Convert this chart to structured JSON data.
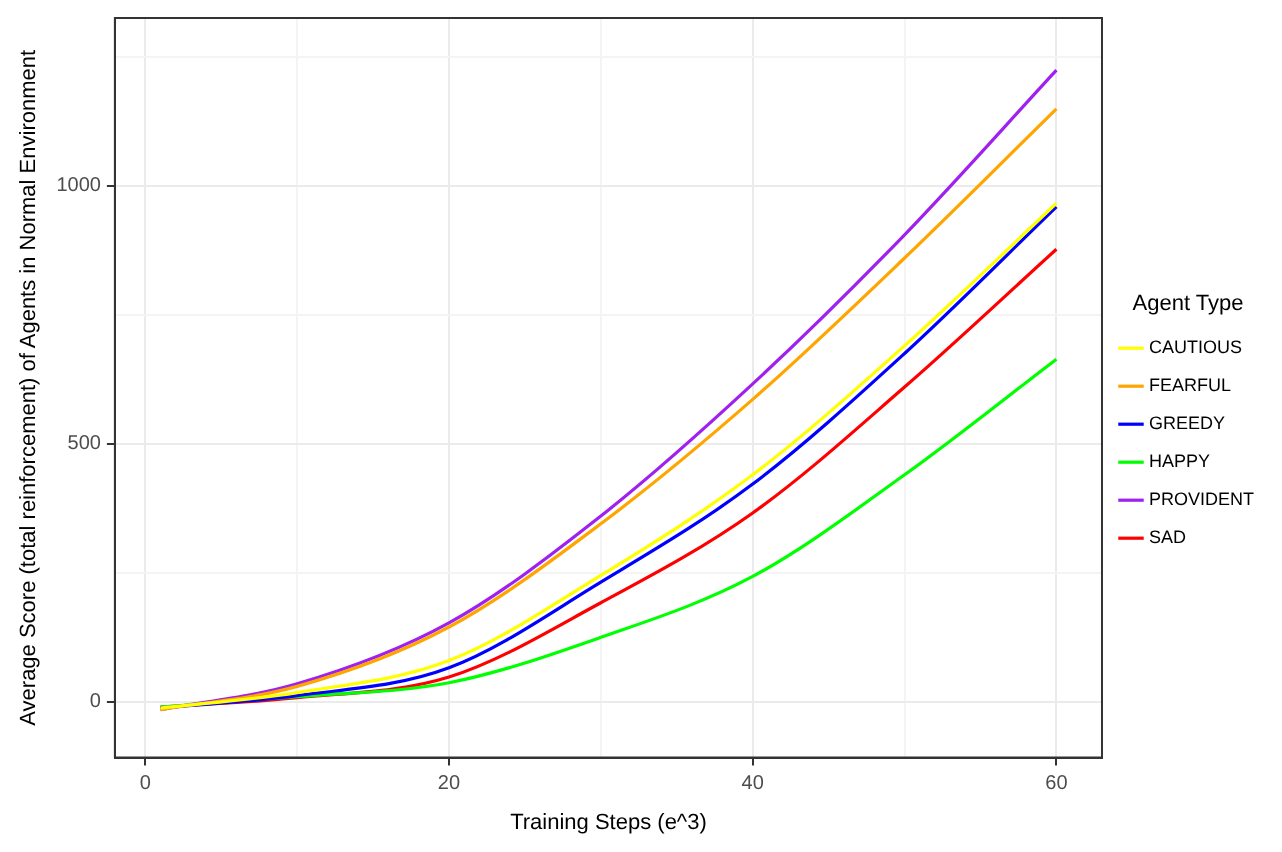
{
  "chart_data": {
    "type": "line",
    "xlabel": "Training Steps (e^3)",
    "ylabel": "Average Score (total reinforcement) of Agents in Normal Environment",
    "legend_title": "Agent Type",
    "legend": "right",
    "grid": true,
    "marker": "none",
    "line_style": "solid",
    "x": [
      1,
      10,
      20,
      30,
      40,
      50,
      60
    ],
    "xlim": [
      -2,
      63
    ],
    "xticks": [
      0,
      {
        "value": 10,
        "label": null
      },
      20,
      {
        "value": 30,
        "label": null
      },
      40,
      {
        "value": 50,
        "label": null
      },
      60
    ],
    "ylim": [
      -108,
      1325
    ],
    "yticks": [
      0,
      {
        "value": 250,
        "label": null
      },
      500,
      {
        "value": 750,
        "label": null
      },
      1000,
      {
        "value": 1250,
        "label": null
      }
    ],
    "series": [
      {
        "name": "CAUTIOUS",
        "color": "#ffff00",
        "values": [
          -12,
          18,
          80,
          245,
          440,
          690,
          966
        ]
      },
      {
        "name": "FEARFUL",
        "color": "#ffa500",
        "values": [
          -15,
          30,
          145,
          345,
          586,
          860,
          1149
        ]
      },
      {
        "name": "GREEDY",
        "color": "#0000ff",
        "values": [
          -12,
          12,
          66,
          232,
          422,
          675,
          959
        ]
      },
      {
        "name": "HAPPY",
        "color": "#00ff00",
        "values": [
          -10,
          10,
          37,
          125,
          243,
          440,
          664
        ]
      },
      {
        "name": "PROVIDENT",
        "color": "#a020f0",
        "values": [
          -15,
          35,
          153,
          360,
          616,
          905,
          1224
        ]
      },
      {
        "name": "SAD",
        "color": "#ff0000",
        "values": [
          -10,
          8,
          48,
          192,
          366,
          610,
          877
        ]
      }
    ]
  }
}
